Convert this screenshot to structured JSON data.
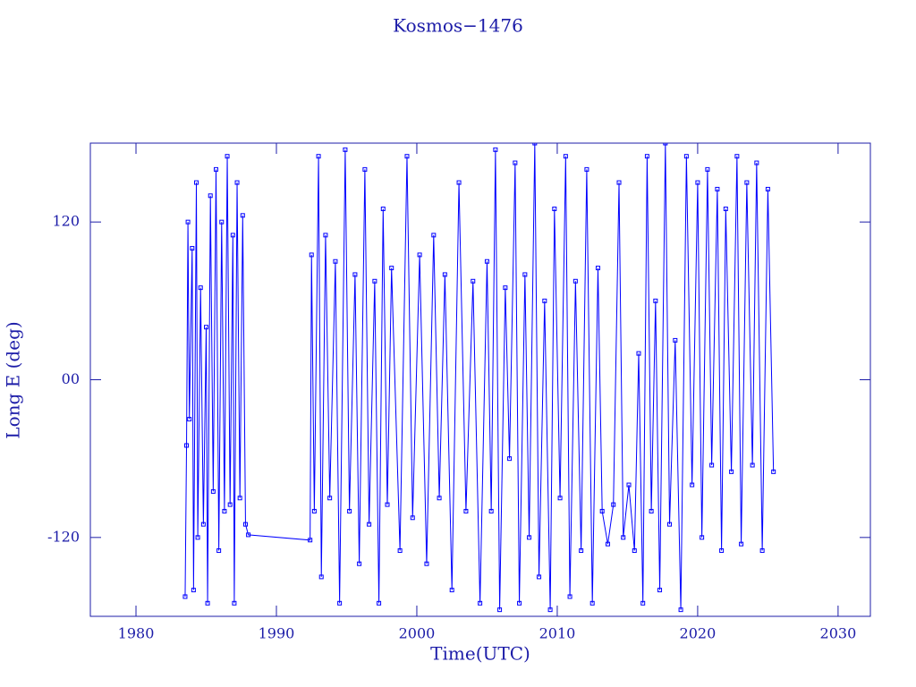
{
  "chart_data": {
    "type": "line",
    "title": "Kosmos−1476",
    "x_label": "Time(UTC)",
    "y_label": "Long E (deg)",
    "xlim": [
      1976.75,
      2032.3
    ],
    "ylim": [
      -180,
      180
    ],
    "xticks": [
      1980,
      1990,
      2000,
      2010,
      2020,
      2030
    ],
    "yticks": [
      {
        "value": -120,
        "label": "-120"
      },
      {
        "value": 0,
        "label": "00"
      },
      120
    ],
    "color": "#0000ff",
    "series": [
      {
        "color": "#0000ff",
        "x": [
          1983.5,
          1983.6,
          1983.7,
          1983.8,
          1984.0,
          1984.1,
          1984.3,
          1984.4,
          1984.6,
          1984.8,
          1985.0,
          1985.1,
          1985.3,
          1985.5,
          1985.7,
          1985.9,
          1986.1,
          1986.3,
          1986.5,
          1986.7,
          1986.9,
          1987.0,
          1987.2,
          1987.4,
          1987.6,
          1987.8,
          1988.0,
          1992.4,
          1992.5,
          1992.7,
          1993.0,
          1993.2,
          1993.5,
          1993.8,
          1994.2,
          1994.5,
          1994.9,
          1995.2,
          1995.6,
          1995.9,
          1996.3,
          1996.6,
          1997.0,
          1997.3,
          1997.6,
          1997.9,
          1998.2,
          1998.8,
          1999.3,
          1999.7,
          2000.2,
          2000.7,
          2001.2,
          2001.6,
          2002.0,
          2002.5,
          2003.0,
          2003.5,
          2004.0,
          2004.5,
          2005.0,
          2005.3,
          2005.6,
          2005.9,
          2006.3,
          2006.6,
          2007.0,
          2007.3,
          2007.7,
          2008.0,
          2008.4,
          2008.7,
          2009.1,
          2009.5,
          2009.8,
          2010.2,
          2010.6,
          2010.9,
          2011.3,
          2011.7,
          2012.1,
          2012.5,
          2012.9,
          2013.2,
          2013.6,
          2014.0,
          2014.4,
          2014.7,
          2015.1,
          2015.5,
          2015.8,
          2016.1,
          2016.4,
          2016.7,
          2017.0,
          2017.3,
          2017.7,
          2018.0,
          2018.4,
          2018.8,
          2019.2,
          2019.6,
          2020.0,
          2020.3,
          2020.7,
          2021.0,
          2021.4,
          2021.7,
          2022.0,
          2022.4,
          2022.8,
          2023.1,
          2023.5,
          2023.9,
          2024.2,
          2024.6,
          2025.0,
          2025.4
        ],
        "values": [
          -165,
          -50,
          120,
          -30,
          100,
          -160,
          150,
          -120,
          70,
          -110,
          40,
          -170,
          140,
          -85,
          160,
          -130,
          120,
          -100,
          170,
          -95,
          110,
          -170,
          150,
          -90,
          125,
          -110,
          -118,
          -122,
          95,
          -100,
          170,
          -150,
          110,
          -90,
          90,
          -170,
          175,
          -100,
          80,
          -140,
          160,
          -110,
          75,
          -170,
          130,
          -95,
          85,
          -130,
          170,
          -105,
          95,
          -140,
          110,
          -90,
          80,
          -160,
          150,
          -100,
          75,
          -170,
          90,
          -100,
          175,
          -175,
          70,
          -60,
          165,
          -170,
          80,
          -120,
          180,
          -150,
          60,
          -175,
          130,
          -90,
          170,
          -165,
          75,
          -130,
          160,
          -170,
          85,
          -100,
          -125,
          -95,
          150,
          -120,
          -80,
          -130,
          20,
          -170,
          170,
          -100,
          60,
          -160,
          180,
          -110,
          30,
          -175,
          170,
          -80,
          150,
          -120,
          160,
          -65,
          145,
          -130,
          130,
          -70,
          170,
          -125,
          150,
          -65,
          165,
          -130,
          145,
          -70
        ]
      }
    ]
  }
}
